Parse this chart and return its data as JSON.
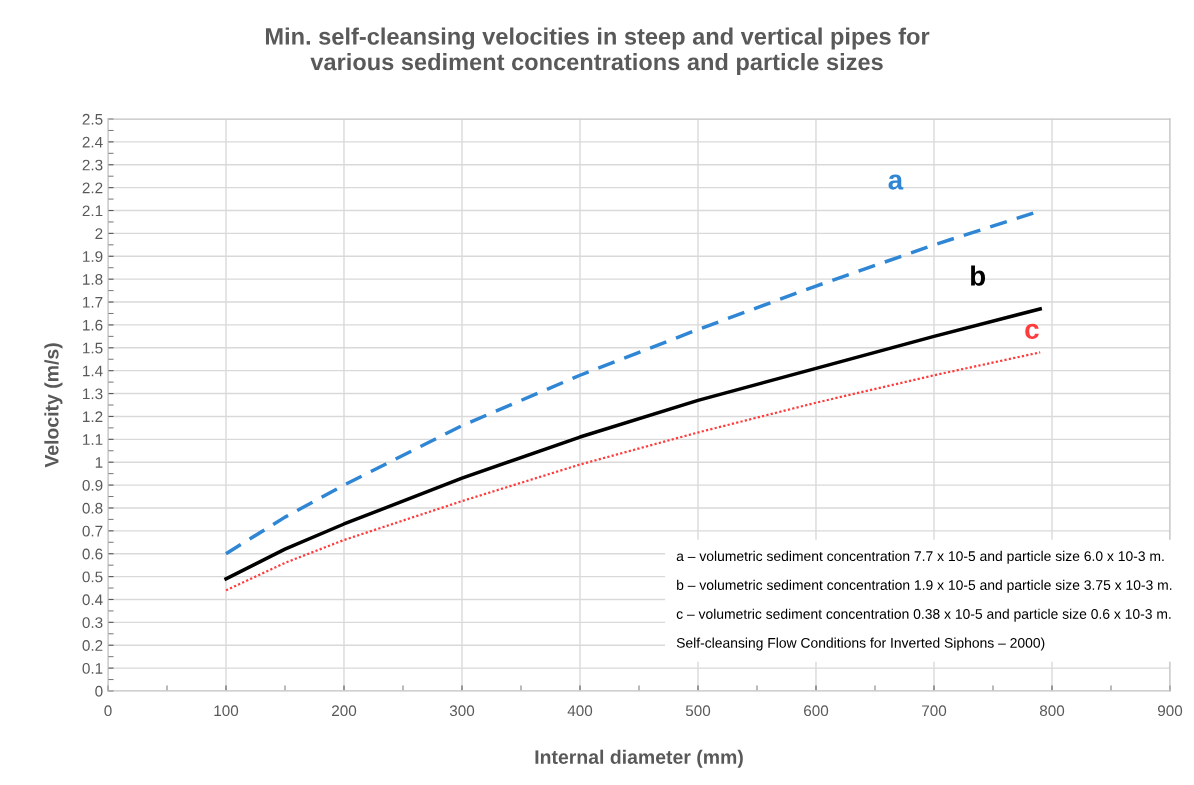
{
  "chart_data": {
    "type": "line",
    "title": "Min. self-cleansing velocities in steep and vertical pipes for\nvarious sediment concentrations and particle sizes",
    "xlabel": "Internal diameter (mm)",
    "ylabel": "Velocity (m/s)",
    "x": [
      100,
      150,
      200,
      300,
      400,
      500,
      600,
      700,
      790
    ],
    "series": [
      {
        "name": "a",
        "color": "#2e86d4",
        "line_style": "dashed",
        "x": [
          100,
          150,
          200,
          300,
          400,
          500,
          600,
          700,
          785
        ],
        "values": [
          0.6,
          0.76,
          0.9,
          1.16,
          1.38,
          1.58,
          1.77,
          1.95,
          2.09
        ]
      },
      {
        "name": "b",
        "color": "#000000",
        "line_style": "solid",
        "values": [
          0.49,
          0.62,
          0.73,
          0.93,
          1.11,
          1.27,
          1.41,
          1.55,
          1.67
        ]
      },
      {
        "name": "c",
        "color": "#ff3b3b",
        "line_style": "dotted",
        "values": [
          0.44,
          0.56,
          0.66,
          0.83,
          0.99,
          1.13,
          1.26,
          1.38,
          1.48
        ]
      }
    ],
    "annotations": [
      "a – volumetric sediment concentration 7.7 x 10-5 and particle size 6.0 x 10-3 m.",
      "b – volumetric sediment concentration 1.9 x 10-5 and particle size 3.75 x 10-3 m.",
      "c – volumetric sediment concentration 0.38 x 10-5 and particle size 0.6 x 10-3 m.",
      "Self-cleansing Flow Conditions for Inverted Siphons – 2000)"
    ],
    "xlim": [
      0,
      900
    ],
    "xticks": [
      0,
      100,
      200,
      300,
      400,
      500,
      600,
      700,
      800,
      900
    ],
    "ylim": [
      0,
      2.5
    ],
    "yticks": [
      0,
      0.1,
      0.2,
      0.3,
      0.4,
      0.5,
      0.6,
      0.7,
      0.8,
      0.9,
      1,
      1.1,
      1.2,
      1.3,
      1.4,
      1.5,
      1.6,
      1.7,
      1.8,
      1.9,
      2,
      2.1,
      2.2,
      2.3,
      2.4,
      2.5
    ],
    "grid": true,
    "marker": "none",
    "legend": false
  }
}
